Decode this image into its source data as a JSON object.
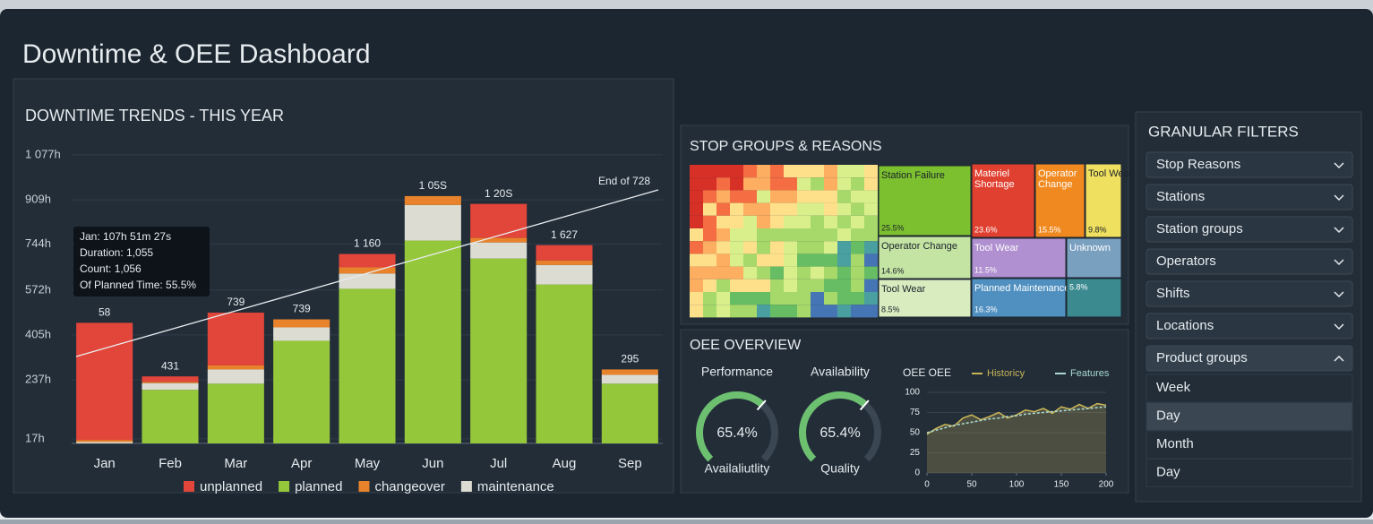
{
  "header": {
    "title": "Downtime & OEE Dashboard"
  },
  "chart_data": [
    {
      "type": "bar",
      "title": "DOWNTIME TRENDS - THIS YEAR",
      "categories": [
        "Jan",
        "Feb",
        "Mar",
        "Apr",
        "May",
        "Jun",
        "Jul",
        "Aug",
        "Sep"
      ],
      "series": [
        {
          "name": "unplanned",
          "color": "#e2453a",
          "values": [
            437,
            20,
            197,
            0,
            50,
            0,
            127,
            57,
            0
          ]
        },
        {
          "name": "planned",
          "color": "#94c83a",
          "values": [
            0,
            200,
            223,
            383,
            577,
            757,
            690,
            593,
            223
          ]
        },
        {
          "name": "changeover",
          "color": "#e8832c",
          "values": [
            8,
            5,
            15,
            30,
            23,
            33,
            17,
            17,
            20
          ]
        },
        {
          "name": "maintenance",
          "color": "#dcdcd2",
          "values": [
            5,
            25,
            53,
            50,
            57,
            133,
            60,
            73,
            33
          ]
        }
      ],
      "bar_labels": [
        "58",
        "431",
        "739",
        "739",
        "1 160",
        "1 05S",
        "1 20S",
        "1 627",
        "295"
      ],
      "ylim": [
        0,
        1120
      ],
      "yticks": [
        {
          "value": 1077,
          "label": "1 077h"
        },
        {
          "value": 909,
          "label": "909h"
        },
        {
          "value": 744,
          "label": "744h"
        },
        {
          "value": 572,
          "label": "572h"
        },
        {
          "value": 405,
          "label": "405h"
        },
        {
          "value": 237,
          "label": "237h"
        },
        {
          "value": 17,
          "label": "17h"
        }
      ],
      "grid": true,
      "annotation": "End of 728",
      "tooltip": [
        "Jan: 107h 51m 27s",
        "Duration: 1,055",
        "Count: 1,056",
        "Of Planned Time: 55.5%"
      ]
    },
    {
      "type": "gauge",
      "categories": [
        "Performance",
        "Availability"
      ],
      "values": [
        65.4,
        65.4
      ],
      "value_labels": [
        "65.4%",
        "65.4%"
      ],
      "captions": [
        "Availaliutlity",
        "Quality"
      ],
      "ylim": [
        0,
        100
      ],
      "color": "#6cc070"
    },
    {
      "type": "line",
      "title": "OEE OEE",
      "x": [
        0,
        10,
        20,
        30,
        40,
        50,
        60,
        70,
        80,
        90,
        100,
        110,
        120,
        130,
        140,
        150,
        160,
        170,
        180,
        190,
        200
      ],
      "series": [
        {
          "name": "Historicy",
          "color": "#c9b458",
          "values": [
            48,
            55,
            60,
            58,
            68,
            72,
            66,
            70,
            75,
            68,
            72,
            78,
            76,
            80,
            74,
            82,
            79,
            85,
            80,
            86,
            84
          ]
        },
        {
          "name": "Features",
          "color": "#a8d8d0",
          "values": [
            50,
            53,
            56,
            59,
            61,
            63,
            65,
            67,
            68,
            70,
            71,
            73,
            74,
            75,
            76,
            77,
            78,
            79,
            80,
            81,
            82
          ]
        }
      ],
      "xlim": [
        0,
        200
      ],
      "ylim": [
        0,
        100
      ],
      "xticks": [
        0,
        50,
        100,
        150,
        200
      ],
      "yticks": [
        0,
        25,
        50,
        75,
        100
      ]
    }
  ],
  "treemap": {
    "title": "STOP GROUPS & REASONS",
    "tiles": [
      {
        "name": "Station Failure",
        "value": "25.5%",
        "color": "#7cc030"
      },
      {
        "name": "Materiel Shortage",
        "value": "23.6%",
        "color": "#e04030"
      },
      {
        "name": "Operator Change",
        "value": "15.5%",
        "color": "#f08a20"
      },
      {
        "name": "Tool Wear",
        "value": "9.8%",
        "color": "#f0e060"
      },
      {
        "name": "Operator Change",
        "value": "14.6%",
        "color": "#c4e4a4"
      },
      {
        "name": "Tool Wear",
        "value": "11.5%",
        "color": "#b090d0"
      },
      {
        "name": "Unknown",
        "color": "#7aa0c0"
      },
      {
        "name": "Tool Wear",
        "value": "8.5%",
        "color": "#d8ecc0"
      },
      {
        "name": "Planned Maintenance",
        "value": "16.3%",
        "color": "#5090c0"
      },
      {
        "value": "5.8%",
        "color": "#3a8a90"
      }
    ]
  },
  "oee": {
    "title": "OEE OVERVIEW"
  },
  "filters": {
    "title": "GRANULAR FILTERS",
    "items": [
      "Stop Reasons",
      "Stations",
      "Station groups",
      "Operators",
      "Shifts",
      "Locations",
      "Product groups"
    ],
    "options": [
      "Week",
      "Day",
      "Month",
      "Day"
    ],
    "selected_option": 1
  }
}
